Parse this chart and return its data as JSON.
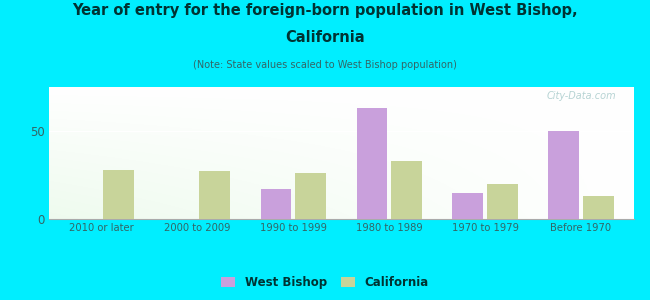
{
  "categories": [
    "2010 or later",
    "2000 to 2009",
    "1990 to 1999",
    "1980 to 1989",
    "1970 to 1979",
    "Before 1970"
  ],
  "west_bishop": [
    0,
    0,
    17,
    63,
    15,
    50
  ],
  "california": [
    28,
    27,
    26,
    33,
    20,
    13
  ],
  "west_bishop_color": "#c9a0dc",
  "california_color": "#c8d49a",
  "title_line1": "Year of entry for the foreign-born population in West Bishop,",
  "title_line2": "California",
  "subtitle": "(Note: State values scaled to West Bishop population)",
  "outer_bg_color": "#00eeff",
  "title_color": "#003333",
  "subtitle_color": "#336666",
  "tick_color": "#336666",
  "ylim": [
    0,
    75
  ],
  "yticks": [
    0,
    50
  ],
  "bar_width": 0.32,
  "bar_gap": 0.04,
  "legend_west_bishop": "West Bishop",
  "legend_california": "California",
  "watermark": "City-Data.com",
  "watermark_color": "#aacccc",
  "grid_color": "#ffffff",
  "spine_color": "#aaaaaa"
}
